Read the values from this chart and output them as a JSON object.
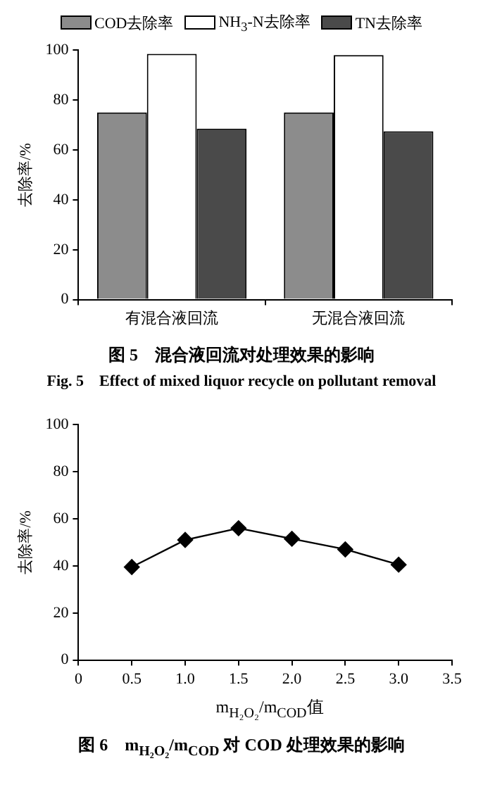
{
  "chart_data": [
    {
      "type": "bar",
      "title": "图 5　混合液回流对处理效果的影响",
      "subtitle": "Fig. 5　Effect of mixed liquor recycle on pollutant removal",
      "ylabel": "去除率/%",
      "categories": [
        "有混合液回流",
        "无混合液回流"
      ],
      "series": [
        {
          "name": "COD去除率",
          "color": "#8c8c8c",
          "values": [
            75,
            75
          ]
        },
        {
          "name": "NH$_{3}$-N去除率",
          "color": "#ffffff",
          "values": [
            98.5,
            98
          ]
        },
        {
          "name": "TN去除率",
          "color": "#4a4a4a",
          "values": [
            68.5,
            67.5
          ]
        }
      ],
      "ylim": [
        0,
        100
      ],
      "yticks": [
        0,
        20,
        40,
        60,
        80,
        100
      ],
      "legend": "top"
    },
    {
      "type": "line",
      "title": "图 6　m$_{H₂O₂}$/m$_{COD}$ 对 COD 处理效果的影响",
      "xlabel": "m$_{H₂O₂}$/m$_{COD}$值",
      "ylabel": "去除率/%",
      "x": [
        0.5,
        1.0,
        1.5,
        2.0,
        2.5,
        3.0
      ],
      "values": [
        39.5,
        51,
        56,
        51.5,
        47,
        40.5
      ],
      "color": "#000000",
      "marker": "diamond",
      "xlim": [
        0,
        3.5
      ],
      "xticks": [
        0,
        {
          "value": 0.5,
          "label": "0.5"
        },
        {
          "value": 1,
          "label": "1.0"
        },
        {
          "value": 1.5,
          "label": "1.5"
        },
        {
          "value": 2,
          "label": "2.0"
        },
        {
          "value": 2.5,
          "label": "2.5"
        },
        {
          "value": 3,
          "label": "3.0"
        },
        {
          "value": 3.5,
          "label": "3.5"
        }
      ],
      "ylim": [
        0,
        100
      ],
      "yticks": [
        0,
        20,
        40,
        60,
        80,
        100
      ]
    }
  ]
}
